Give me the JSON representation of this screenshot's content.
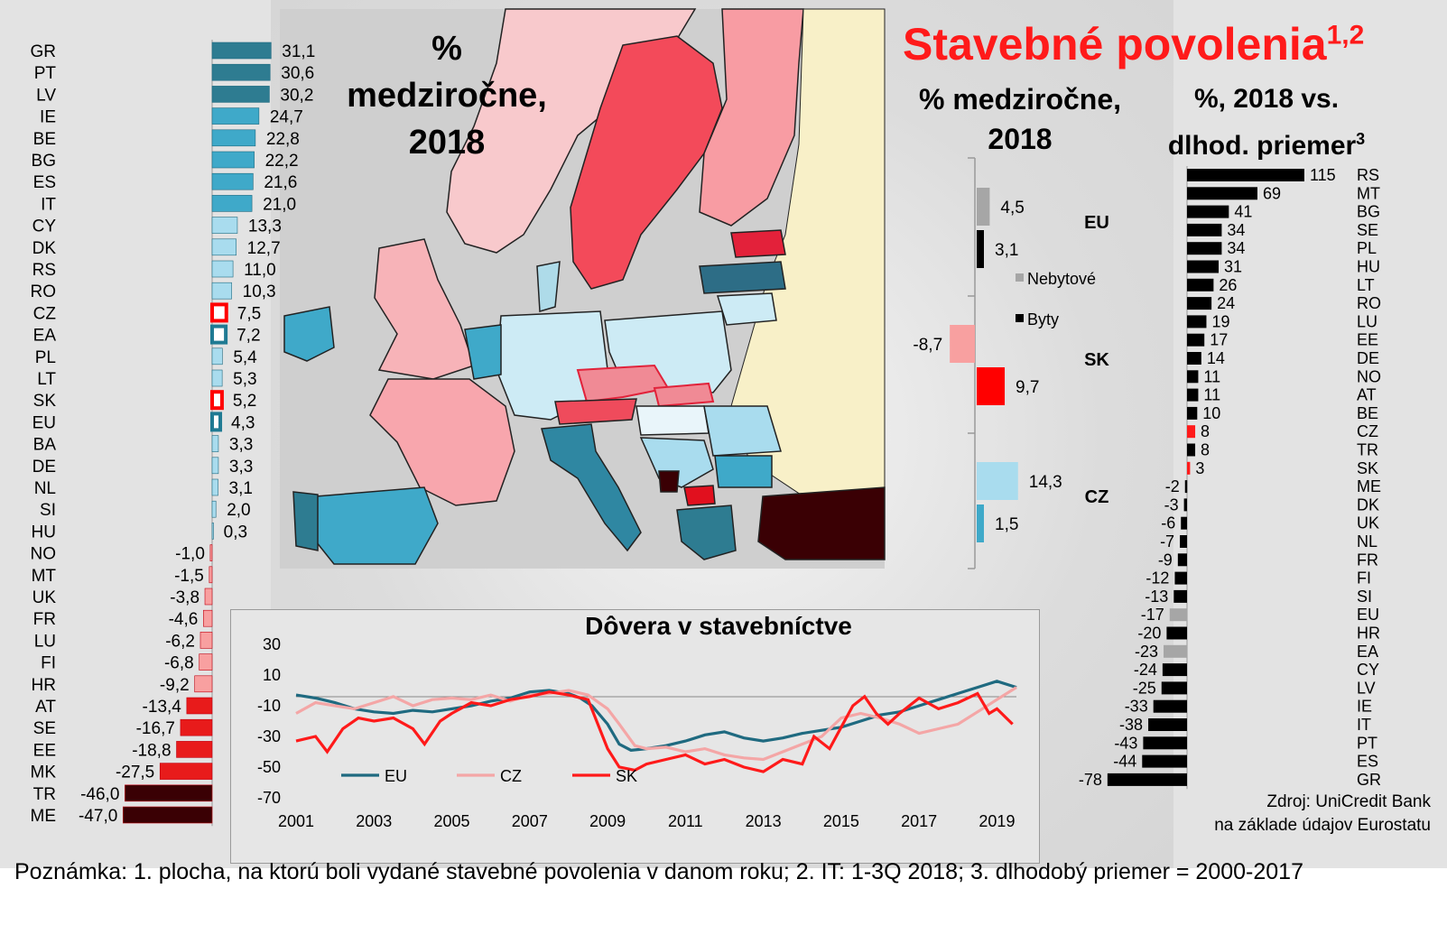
{
  "main_title": {
    "text": "Stavebné povolenia",
    "sup": "1,2"
  },
  "map_title": [
    "%",
    "medziročne,",
    "2018"
  ],
  "mid_title": [
    "% medziročne,",
    "2018"
  ],
  "right_title": {
    "line1": "%, 2018 vs.",
    "line2": "dlhod. priemer",
    "sup": "3"
  },
  "source": [
    "Zdroj: UniCredit Bank",
    "na základe údajov Eurostatu"
  ],
  "note": "Poznámka: 1. plocha, na ktorú boli vydané stavebné povolenia v danom roku; 2. IT: 1-3Q 2018; 3. dlhodobý priemer = 2000-2017",
  "colors": {
    "title_red": "#ff1a1a",
    "pos_high": "#2e7c91",
    "pos_mid": "#3fa9c9",
    "pos_low": "#a9dcee",
    "neg_low": "#f8a0a0",
    "neg_mid": "#e81b1b",
    "neg_high": "#3a0004",
    "eu_nonres": "#a6a6a6",
    "eu_res": "#000000",
    "sk_nonres": "#f8a0a0",
    "sk_res": "#ff0000",
    "cz_nonres": "#a9dcee",
    "cz_res": "#3fa9c9"
  },
  "chart_data": [
    {
      "type": "bar",
      "orientation": "horizontal",
      "title": "",
      "categories": [
        "GR",
        "PT",
        "LV",
        "IE",
        "BE",
        "BG",
        "ES",
        "IT",
        "CY",
        "DK",
        "RS",
        "RO",
        "CZ",
        "EA",
        "PL",
        "LT",
        "SK",
        "EU",
        "BA",
        "DE",
        "NL",
        "SI",
        "HU",
        "NO",
        "MT",
        "UK",
        "FR",
        "LU",
        "FI",
        "HR",
        "AT",
        "SE",
        "EE",
        "MK",
        "TR",
        "ME"
      ],
      "values": [
        31.1,
        30.6,
        30.2,
        24.7,
        22.8,
        22.2,
        21.6,
        21.0,
        13.3,
        12.7,
        11.0,
        10.3,
        7.5,
        7.2,
        5.4,
        5.3,
        5.2,
        4.3,
        3.3,
        3.3,
        3.1,
        2.0,
        0.3,
        -1.0,
        -1.5,
        -3.8,
        -4.6,
        -6.2,
        -6.8,
        -9.2,
        -13.4,
        -16.7,
        -18.8,
        -27.5,
        -46.0,
        -47.0
      ],
      "value_labels": [
        "31,1",
        "30,6",
        "30,2",
        "24,7",
        "22,8",
        "22,2",
        "21,6",
        "21,0",
        "13,3",
        "12,7",
        "11,0",
        "10,3",
        "7,5",
        "7,2",
        "5,4",
        "5,3",
        "5,2",
        "4,3",
        "3,3",
        "3,3",
        "3,1",
        "2,0",
        "0,3",
        "-1,0",
        "-1,5",
        "-3,8",
        "-4,6",
        "-6,2",
        "-6,8",
        "-9,2",
        "-13,4",
        "-16,7",
        "-18,8",
        "-27,5",
        "-46,0",
        "-47,0"
      ],
      "highlighted": {
        "CZ": "red",
        "SK": "red",
        "EA": "blue",
        "EU": "blue"
      }
    },
    {
      "type": "bar",
      "orientation": "vertical-grouped",
      "groups": [
        "EU",
        "SK",
        "CZ"
      ],
      "series": [
        {
          "name": "Nebytové",
          "values": [
            4.5,
            -8.7,
            14.3
          ],
          "labels": [
            "4,5",
            "-8,7",
            "14,3"
          ]
        },
        {
          "name": "Byty",
          "values": [
            3.1,
            9.7,
            1.5
          ],
          "labels": [
            "3,1",
            "9,7",
            "1,5"
          ]
        }
      ],
      "legend": [
        "Nebytové",
        "Byty"
      ]
    },
    {
      "type": "bar",
      "orientation": "horizontal",
      "categories": [
        "RS",
        "MT",
        "BG",
        "SE",
        "PL",
        "HU",
        "LT",
        "RO",
        "LU",
        "EE",
        "DE",
        "NO",
        "AT",
        "BE",
        "CZ",
        "TR",
        "SK",
        "ME",
        "DK",
        "UK",
        "NL",
        "FR",
        "FI",
        "SI",
        "EU",
        "HR",
        "EA",
        "CY",
        "LV",
        "IE",
        "IT",
        "PT",
        "ES",
        "GR"
      ],
      "values": [
        115,
        69,
        41,
        34,
        34,
        31,
        26,
        24,
        19,
        17,
        14,
        11,
        11,
        10,
        8,
        8,
        3,
        -2,
        -3,
        -6,
        -7,
        -9,
        -12,
        -13,
        -17,
        -20,
        -23,
        -24,
        -25,
        -33,
        -38,
        -43,
        -44,
        -78
      ],
      "highlighted": {
        "CZ": "red",
        "SK": "red",
        "EU": "gray",
        "EA": "gray"
      }
    },
    {
      "type": "line",
      "title": "Dôvera v stavebníctve",
      "x_ticks": [
        "2001",
        "2003",
        "2005",
        "2007",
        "2009",
        "2011",
        "2013",
        "2015",
        "2017",
        "2019"
      ],
      "y_ticks": [
        "30",
        "10",
        "-10",
        "-30",
        "-50",
        "-70"
      ],
      "ylim": [
        -70,
        30
      ],
      "xlim": [
        2001,
        2019.5
      ],
      "series": [
        {
          "name": "EU",
          "color": "#1f6a80",
          "points": [
            [
              2001,
              -3
            ],
            [
              2001.5,
              -5
            ],
            [
              2002,
              -8
            ],
            [
              2002.5,
              -12
            ],
            [
              2003,
              -14
            ],
            [
              2003.5,
              -15
            ],
            [
              2004,
              -13
            ],
            [
              2004.5,
              -14
            ],
            [
              2005,
              -12
            ],
            [
              2005.5,
              -10
            ],
            [
              2006,
              -7
            ],
            [
              2006.5,
              -5
            ],
            [
              2007,
              -1
            ],
            [
              2007.5,
              0
            ],
            [
              2008,
              -2
            ],
            [
              2008.3,
              -5
            ],
            [
              2008.6,
              -10
            ],
            [
              2009,
              -22
            ],
            [
              2009.3,
              -35
            ],
            [
              2009.6,
              -39
            ],
            [
              2010,
              -38
            ],
            [
              2010.5,
              -36
            ],
            [
              2011,
              -33
            ],
            [
              2011.5,
              -29
            ],
            [
              2012,
              -27
            ],
            [
              2012.5,
              -31
            ],
            [
              2013,
              -33
            ],
            [
              2013.5,
              -31
            ],
            [
              2014,
              -28
            ],
            [
              2014.5,
              -26
            ],
            [
              2015,
              -24
            ],
            [
              2015.5,
              -20
            ],
            [
              2016,
              -16
            ],
            [
              2016.5,
              -14
            ],
            [
              2017,
              -10
            ],
            [
              2017.5,
              -6
            ],
            [
              2018,
              -2
            ],
            [
              2018.5,
              2
            ],
            [
              2019,
              6
            ],
            [
              2019.5,
              2
            ]
          ]
        },
        {
          "name": "CZ",
          "color": "#f4a6a6",
          "points": [
            [
              2001,
              -15
            ],
            [
              2001.5,
              -8
            ],
            [
              2002,
              -10
            ],
            [
              2002.5,
              -12
            ],
            [
              2003,
              -8
            ],
            [
              2003.5,
              -4
            ],
            [
              2004,
              -10
            ],
            [
              2004.5,
              -6
            ],
            [
              2005,
              -5
            ],
            [
              2005.5,
              -6
            ],
            [
              2006,
              -3
            ],
            [
              2006.5,
              -7
            ],
            [
              2007,
              -3
            ],
            [
              2007.5,
              -2
            ],
            [
              2008,
              0
            ],
            [
              2008.5,
              -3
            ],
            [
              2009,
              -12
            ],
            [
              2009.3,
              -22
            ],
            [
              2009.7,
              -36
            ],
            [
              2010,
              -38
            ],
            [
              2010.5,
              -37
            ],
            [
              2011,
              -40
            ],
            [
              2011.5,
              -38
            ],
            [
              2012,
              -42
            ],
            [
              2012.5,
              -44
            ],
            [
              2013,
              -45
            ],
            [
              2013.5,
              -40
            ],
            [
              2014,
              -35
            ],
            [
              2014.5,
              -30
            ],
            [
              2015,
              -18
            ],
            [
              2015.5,
              -15
            ],
            [
              2016,
              -18
            ],
            [
              2016.5,
              -22
            ],
            [
              2017,
              -28
            ],
            [
              2017.5,
              -25
            ],
            [
              2018,
              -22
            ],
            [
              2018.5,
              -14
            ],
            [
              2019,
              -6
            ],
            [
              2019.5,
              2
            ]
          ]
        },
        {
          "name": "SK",
          "color": "#ff1a1a",
          "points": [
            [
              2001,
              -33
            ],
            [
              2001.5,
              -30
            ],
            [
              2001.8,
              -40
            ],
            [
              2002.2,
              -25
            ],
            [
              2002.6,
              -18
            ],
            [
              2003,
              -20
            ],
            [
              2003.5,
              -18
            ],
            [
              2004,
              -25
            ],
            [
              2004.3,
              -35
            ],
            [
              2004.7,
              -20
            ],
            [
              2005,
              -15
            ],
            [
              2005.5,
              -8
            ],
            [
              2006,
              -10
            ],
            [
              2006.5,
              -6
            ],
            [
              2007,
              -4
            ],
            [
              2007.5,
              -1
            ],
            [
              2008,
              -3
            ],
            [
              2008.5,
              -6
            ],
            [
              2009,
              -38
            ],
            [
              2009.3,
              -50
            ],
            [
              2009.7,
              -52
            ],
            [
              2010,
              -48
            ],
            [
              2010.5,
              -45
            ],
            [
              2011,
              -42
            ],
            [
              2011.5,
              -48
            ],
            [
              2012,
              -45
            ],
            [
              2012.5,
              -50
            ],
            [
              2013,
              -53
            ],
            [
              2013.5,
              -45
            ],
            [
              2014,
              -48
            ],
            [
              2014.3,
              -30
            ],
            [
              2014.7,
              -38
            ],
            [
              2015,
              -24
            ],
            [
              2015.3,
              -10
            ],
            [
              2015.6,
              -4
            ],
            [
              2015.9,
              -15
            ],
            [
              2016.2,
              -22
            ],
            [
              2016.5,
              -15
            ],
            [
              2017,
              -5
            ],
            [
              2017.5,
              -12
            ],
            [
              2018,
              -8
            ],
            [
              2018.5,
              -2
            ],
            [
              2018.8,
              -15
            ],
            [
              2019,
              -12
            ],
            [
              2019.4,
              -22
            ]
          ]
        }
      ]
    }
  ]
}
